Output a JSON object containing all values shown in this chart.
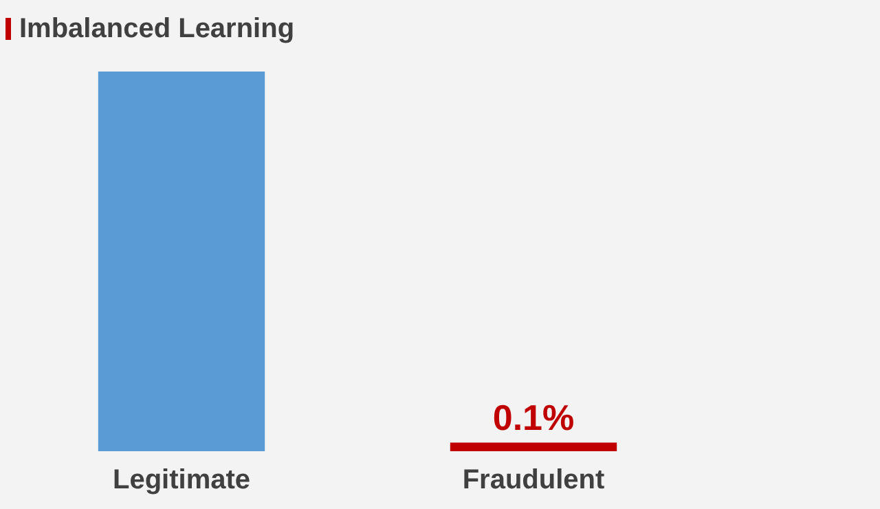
{
  "chart_data": {
    "type": "bar",
    "title": "Imbalanced Learning",
    "categories": [
      "Legitimate",
      "Fraudulent"
    ],
    "values": [
      99.9,
      0.1
    ],
    "colors": [
      "#5b9bd5",
      "#c00000"
    ],
    "value_labels": [
      null,
      "0.1%"
    ],
    "tick_labels": "x"
  }
}
